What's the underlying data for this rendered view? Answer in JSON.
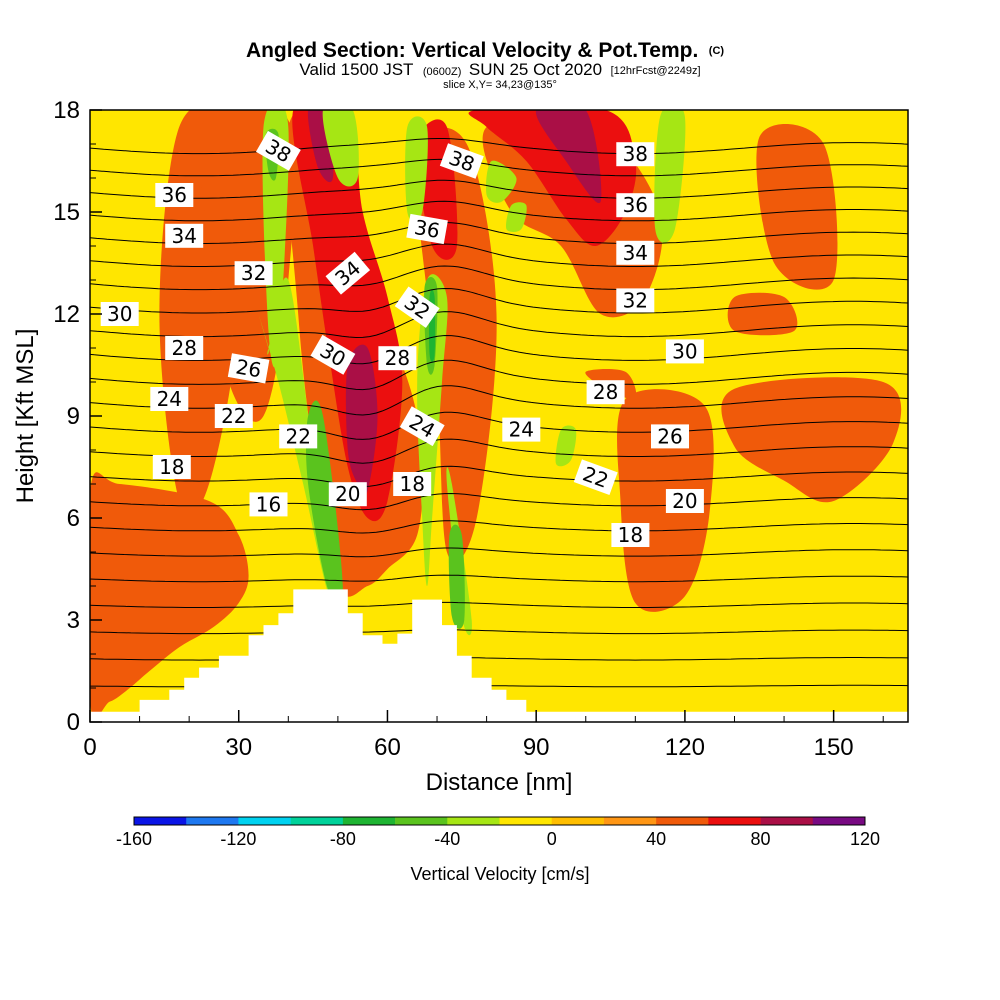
{
  "chart_data": {
    "type": "heatmap",
    "title": "Angled Section: Vertical Velocity & Pot.Temp.",
    "title_units": "(C)",
    "subtitle_prefix": "Valid 1500 JST",
    "subtitle_utc": "(0600Z)",
    "subtitle_date": "SUN 25 Oct 2020",
    "subtitle_fcst": "[12hrFcst@2249z]",
    "slice_info": "slice X,Y= 34,23@135°",
    "xlabel": "Distance [nm]",
    "ylabel": "Height [Kft MSL]",
    "xlim": [
      0,
      165
    ],
    "ylim": [
      0,
      18
    ],
    "xticks": [
      0,
      30,
      60,
      90,
      120,
      150
    ],
    "yticks": [
      0,
      3,
      6,
      9,
      12,
      15,
      18
    ],
    "colorbar": {
      "title": "Vertical Velocity [cm/s]",
      "labels": [
        -160,
        -120,
        -80,
        -40,
        0,
        40,
        80,
        120
      ],
      "bins": [
        -160,
        -140,
        -120,
        -100,
        -80,
        -60,
        -40,
        -20,
        0,
        20,
        40,
        60,
        80,
        100,
        120
      ],
      "colors": [
        "#0a14e6",
        "#1e78f0",
        "#00d2f0",
        "#00d29a",
        "#1eb432",
        "#5ac31e",
        "#a6e614",
        "#ffe600",
        "#ffbe00",
        "#ff9614",
        "#f05a0a",
        "#eb0f0f",
        "#aa0f46",
        "#780a82"
      ]
    },
    "velocity_regions": [
      {
        "level": 10,
        "x": [
          18,
          28,
          30,
          24,
          18,
          14
        ],
        "y": [
          17.5,
          17.5,
          12,
          7,
          6.5,
          12
        ]
      },
      {
        "level": 10,
        "x": [
          0,
          6,
          24,
          30,
          32,
          30,
          25,
          18,
          12,
          8,
          4,
          0
        ],
        "y": [
          6.8,
          7.0,
          6.5,
          5.5,
          4.3,
          3.5,
          2.8,
          2.2,
          1.5,
          1.0,
          0.6,
          0.6
        ]
      },
      {
        "level": 10,
        "x": [
          23,
          40,
          40,
          35,
          28,
          24
        ],
        "y": [
          17.7,
          17.7,
          13,
          9,
          10,
          14
        ]
      },
      {
        "level": 10,
        "x": [
          40,
          50,
          54,
          63,
          67,
          66,
          60,
          56,
          50,
          45,
          42
        ],
        "y": [
          17.5,
          17.5,
          13,
          10.5,
          8,
          5.5,
          4.5,
          4.0,
          4.0,
          8,
          12
        ]
      },
      {
        "level": 10,
        "x": [
          66,
          76,
          82,
          78,
          72,
          70
        ],
        "y": [
          16.5,
          17,
          12,
          6,
          5,
          10
        ]
      },
      {
        "level": 10,
        "x": [
          80,
          102,
          115,
          112,
          103,
          95,
          85
        ],
        "y": [
          17.5,
          17.5,
          15,
          12.5,
          12,
          14,
          15
        ]
      },
      {
        "level": 10,
        "x": [
          100,
          108,
          110,
          104
        ],
        "y": [
          10.3,
          10.3,
          9.5,
          9.8
        ]
      },
      {
        "level": 10,
        "x": [
          108,
          124,
          125,
          120,
          110,
          107
        ],
        "y": [
          9.5,
          9.3,
          6.2,
          3.7,
          3.5,
          6.5
        ]
      },
      {
        "level": 10,
        "x": [
          130,
          160,
          162,
          150,
          140,
          130
        ],
        "y": [
          9.8,
          10,
          8.2,
          6.5,
          7.1,
          8.1
        ]
      },
      {
        "level": 10,
        "x": [
          135,
          148,
          150,
          138
        ],
        "y": [
          17.2,
          17,
          13,
          13.5
        ]
      },
      {
        "level": 10,
        "x": [
          130,
          140,
          142,
          130
        ],
        "y": [
          12.5,
          12.5,
          11.5,
          11.5
        ]
      },
      {
        "level": 11,
        "x": [
          41,
          52,
          55,
          60,
          63,
          60,
          56,
          52,
          48,
          45
        ],
        "y": [
          18,
          18,
          15,
          12.5,
          10,
          6.5,
          6.0,
          7.5,
          11,
          14
        ]
      },
      {
        "level": 11,
        "x": [
          78,
          104,
          110,
          108,
          102,
          96,
          88,
          80
        ],
        "y": [
          18,
          18,
          16.5,
          15,
          14,
          14.8,
          16.5,
          17.5
        ]
      },
      {
        "level": 11,
        "x": [
          66,
          72,
          74,
          69
        ],
        "y": [
          17,
          17.5,
          14,
          14
        ]
      },
      {
        "level": 12,
        "x": [
          44,
          48,
          49,
          46
        ],
        "y": [
          18,
          18,
          16,
          16.3
        ]
      },
      {
        "level": 12,
        "x": [
          52,
          56,
          58,
          56,
          54,
          52
        ],
        "y": [
          10.5,
          11,
          9,
          6.8,
          7,
          8
        ]
      },
      {
        "level": 12,
        "x": [
          90,
          100,
          103,
          96
        ],
        "y": [
          18,
          18,
          15.3,
          16.5
        ]
      },
      {
        "level": 6,
        "x": [
          35,
          40,
          38,
          36
        ],
        "y": [
          17.5,
          17.5,
          11,
          11.5
        ]
      },
      {
        "level": 6,
        "x": [
          36,
          40,
          45,
          50,
          48,
          43,
          38,
          34,
          36
        ],
        "y": [
          11,
          13,
          8,
          4,
          3.8,
          7,
          10,
          12,
          11
        ]
      },
      {
        "level": 6,
        "x": [
          47,
          53,
          54,
          50
        ],
        "y": [
          18,
          18,
          16,
          16
        ]
      },
      {
        "level": 6,
        "x": [
          64,
          68,
          67,
          64
        ],
        "y": [
          17.5,
          17.5,
          15,
          15
        ]
      },
      {
        "level": 6,
        "x": [
          68,
          72,
          71,
          69,
          68,
          67,
          66
        ],
        "y": [
          13,
          12.5,
          10,
          6,
          4.0,
          6,
          10
        ]
      },
      {
        "level": 6,
        "x": [
          72,
          73,
          77,
          75
        ],
        "y": [
          7,
          7,
          3.0,
          3.1
        ]
      },
      {
        "level": 6,
        "x": [
          81,
          86,
          83,
          80
        ],
        "y": [
          16.5,
          16,
          15.3,
          15.5
        ]
      },
      {
        "level": 6,
        "x": [
          115,
          120,
          118,
          114
        ],
        "y": [
          17.8,
          17.8,
          14.5,
          14.5
        ]
      },
      {
        "level": 6,
        "x": [
          95,
          98,
          97,
          94
        ],
        "y": [
          8.6,
          8.6,
          7.7,
          7.6
        ]
      },
      {
        "level": 6,
        "x": [
          85,
          88,
          87,
          84
        ],
        "y": [
          15.2,
          15.2,
          14.5,
          14.5
        ]
      },
      {
        "level": 5,
        "x": [
          35.5,
          38,
          37.5,
          36
        ],
        "y": [
          17.3,
          17.3,
          16,
          16.2
        ]
      },
      {
        "level": 5,
        "x": [
          44,
          47,
          51,
          48,
          44
        ],
        "y": [
          9,
          9,
          4.0,
          3.9,
          7
        ]
      },
      {
        "level": 5,
        "x": [
          67.5,
          70,
          69.5,
          68
        ],
        "y": [
          12.8,
          12.8,
          10.5,
          10.5
        ]
      },
      {
        "level": 5,
        "x": [
          72.5,
          75,
          75.5,
          73
        ],
        "y": [
          5.5,
          5.5,
          3.0,
          3.1
        ]
      },
      {
        "level": 4,
        "x": [
          68.5,
          69.5,
          69.5,
          68.5
        ],
        "y": [
          12.5,
          12.5,
          10.8,
          10.8
        ]
      }
    ],
    "terrain": [
      [
        0,
        0.3
      ],
      [
        10,
        0.3
      ],
      [
        10,
        0.65
      ],
      [
        16,
        0.65
      ],
      [
        16,
        0.95
      ],
      [
        19,
        0.95
      ],
      [
        19,
        1.3
      ],
      [
        22,
        1.3
      ],
      [
        22,
        1.6
      ],
      [
        26,
        1.6
      ],
      [
        26,
        1.95
      ],
      [
        32,
        1.95
      ],
      [
        32,
        2.55
      ],
      [
        35,
        2.55
      ],
      [
        35,
        2.85
      ],
      [
        38,
        2.85
      ],
      [
        38,
        3.2
      ],
      [
        41,
        3.2
      ],
      [
        41,
        3.9
      ],
      [
        52,
        3.9
      ],
      [
        52,
        3.2
      ],
      [
        55,
        3.2
      ],
      [
        55,
        2.55
      ],
      [
        59,
        2.55
      ],
      [
        59,
        2.3
      ],
      [
        62,
        2.3
      ],
      [
        62,
        2.6
      ],
      [
        65,
        2.6
      ],
      [
        65,
        3.6
      ],
      [
        71,
        3.6
      ],
      [
        71,
        2.85
      ],
      [
        74,
        2.85
      ],
      [
        74,
        1.95
      ],
      [
        77,
        1.95
      ],
      [
        77,
        1.3
      ],
      [
        81,
        1.3
      ],
      [
        81,
        0.95
      ],
      [
        84,
        0.95
      ],
      [
        84,
        0.65
      ],
      [
        88,
        0.65
      ],
      [
        88,
        0.3
      ],
      [
        165,
        0.3
      ]
    ],
    "theta_contour_levels": [
      16,
      17,
      18,
      19,
      20,
      21,
      22,
      23,
      24,
      25,
      26,
      27,
      28,
      29,
      30,
      31,
      32,
      33,
      34,
      35,
      36,
      37,
      38,
      39
    ],
    "theta_contour_labels": [
      {
        "text": "38",
        "x": 38,
        "y": 16.8,
        "angle": 30
      },
      {
        "text": "36",
        "x": 17,
        "y": 15.5,
        "angle": 0
      },
      {
        "text": "34",
        "x": 19,
        "y": 14.3,
        "angle": 0
      },
      {
        "text": "32",
        "x": 33,
        "y": 13.2,
        "angle": 0
      },
      {
        "text": "34",
        "x": 52,
        "y": 13.2,
        "angle": -40
      },
      {
        "text": "38",
        "x": 75,
        "y": 16.5,
        "angle": 20
      },
      {
        "text": "36",
        "x": 68,
        "y": 14.5,
        "angle": 10
      },
      {
        "text": "32",
        "x": 66,
        "y": 12.2,
        "angle": 35
      },
      {
        "text": "30",
        "x": 6,
        "y": 12.0,
        "angle": 0
      },
      {
        "text": "28",
        "x": 19,
        "y": 11.0,
        "angle": 0
      },
      {
        "text": "26",
        "x": 32,
        "y": 10.4,
        "angle": 10
      },
      {
        "text": "30",
        "x": 49,
        "y": 10.8,
        "angle": 30
      },
      {
        "text": "28",
        "x": 62,
        "y": 10.7,
        "angle": 0
      },
      {
        "text": "24",
        "x": 16,
        "y": 9.5,
        "angle": 0
      },
      {
        "text": "22",
        "x": 29,
        "y": 9.0,
        "angle": 0
      },
      {
        "text": "22",
        "x": 42,
        "y": 8.4,
        "angle": 0
      },
      {
        "text": "24",
        "x": 67,
        "y": 8.7,
        "angle": 30
      },
      {
        "text": "18",
        "x": 16.5,
        "y": 7.5,
        "angle": 0
      },
      {
        "text": "20",
        "x": 52,
        "y": 6.7,
        "angle": 0
      },
      {
        "text": "18",
        "x": 65,
        "y": 7.0,
        "angle": 0
      },
      {
        "text": "16",
        "x": 36,
        "y": 6.4,
        "angle": 0
      },
      {
        "text": "24",
        "x": 87,
        "y": 8.6,
        "angle": 0
      },
      {
        "text": "22",
        "x": 102,
        "y": 7.2,
        "angle": 20
      },
      {
        "text": "28",
        "x": 104,
        "y": 9.7,
        "angle": 0
      },
      {
        "text": "26",
        "x": 117,
        "y": 8.4,
        "angle": 0
      },
      {
        "text": "30",
        "x": 120,
        "y": 10.9,
        "angle": 0
      },
      {
        "text": "32",
        "x": 110,
        "y": 12.4,
        "angle": 0
      },
      {
        "text": "34",
        "x": 110,
        "y": 13.8,
        "angle": 0
      },
      {
        "text": "36",
        "x": 110,
        "y": 15.2,
        "angle": 0
      },
      {
        "text": "38",
        "x": 110,
        "y": 16.7,
        "angle": 0
      },
      {
        "text": "20",
        "x": 120,
        "y": 6.5,
        "angle": 0
      },
      {
        "text": "18",
        "x": 109,
        "y": 5.5,
        "angle": 0
      }
    ]
  }
}
